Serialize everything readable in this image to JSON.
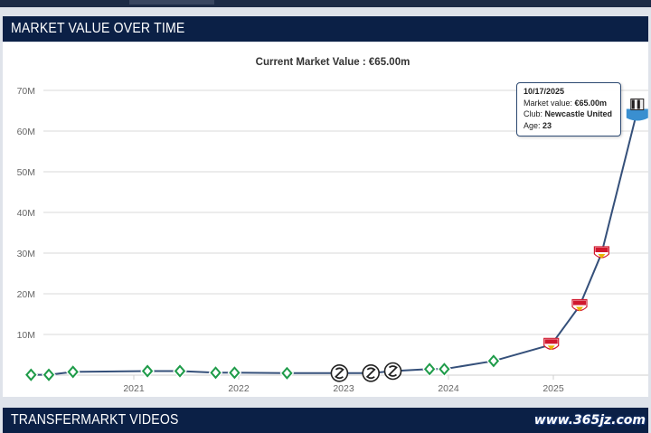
{
  "sections": {
    "market_value_title": "MARKET VALUE OVER TIME",
    "videos_title": "TRANSFERMARKT VIDEOS"
  },
  "watermark": "www.365jz.com",
  "colors": {
    "header_bg": "#0b2046",
    "line": "#35507a",
    "grid": "#d9d9d9",
    "werder": "#1e9b49",
    "stuttgart": "#d1182e",
    "newcastle": "#231f20"
  },
  "tooltip": {
    "date": "10/17/2025",
    "mv_label": "Market value: ",
    "mv_value": "€65.00m",
    "club_label": "Club: ",
    "club_value": "Newcastle United",
    "age_label": "Age: ",
    "age_value": "23"
  },
  "chart_data": {
    "type": "line",
    "title": "Current Market Value : €65.00m",
    "xlabel": "",
    "ylabel": "",
    "ylim": [
      0,
      70
    ],
    "y_ticks": [
      "70M",
      "60M",
      "50M",
      "40M",
      "30M",
      "20M",
      "10M"
    ],
    "y_tick_values": [
      70,
      60,
      50,
      40,
      30,
      20,
      10
    ],
    "x_ticks": [
      "2021",
      "2022",
      "2023",
      "2024",
      "2025"
    ],
    "x_tick_values": [
      2021,
      2022,
      2023,
      2024,
      2025
    ],
    "xlim": [
      2020.0,
      2025.9
    ],
    "grid": true,
    "unit": "€m",
    "series": [
      {
        "points": [
          {
            "x": 2020.02,
            "y": 0.1,
            "club": "werder"
          },
          {
            "x": 2020.19,
            "y": 0.1,
            "club": "werder"
          },
          {
            "x": 2020.42,
            "y": 0.8,
            "club": "werder"
          },
          {
            "x": 2021.13,
            "y": 1.0,
            "club": "werder"
          },
          {
            "x": 2021.44,
            "y": 1.0,
            "club": "werder"
          },
          {
            "x": 2021.78,
            "y": 0.6,
            "club": "werder"
          },
          {
            "x": 2021.96,
            "y": 0.6,
            "club": "werder"
          },
          {
            "x": 2022.46,
            "y": 0.5,
            "club": "werder"
          },
          {
            "x": 2022.96,
            "y": 0.5,
            "club": "elversberg"
          },
          {
            "x": 2023.26,
            "y": 0.5,
            "club": "elversberg"
          },
          {
            "x": 2023.47,
            "y": 1.0,
            "club": "elversberg"
          },
          {
            "x": 2023.82,
            "y": 1.5,
            "club": "werder"
          },
          {
            "x": 2023.96,
            "y": 1.5,
            "club": "werder"
          },
          {
            "x": 2024.43,
            "y": 3.5,
            "club": "werder"
          },
          {
            "x": 2024.98,
            "y": 7.5,
            "club": "stuttgart"
          },
          {
            "x": 2025.25,
            "y": 17.0,
            "club": "stuttgart"
          },
          {
            "x": 2025.46,
            "y": 30.0,
            "club": "stuttgart"
          },
          {
            "x": 2025.8,
            "y": 65.0,
            "club": "newcastle"
          }
        ]
      }
    ]
  }
}
